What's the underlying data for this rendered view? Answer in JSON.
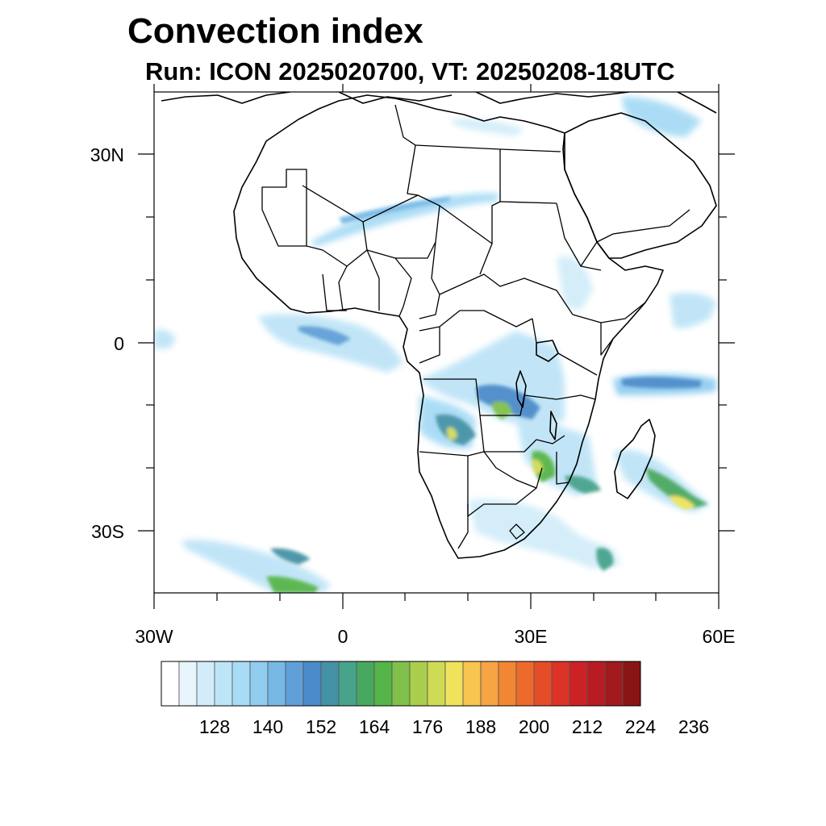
{
  "title": "Convection index",
  "subtitle": "Run: ICON 2025020700,  VT: 20250208-18UTC",
  "map": {
    "region": "Africa",
    "lon_range": [
      -30,
      60
    ],
    "lat_range": [
      -40,
      40
    ],
    "lat_labels": [
      "30N",
      "0",
      "30S"
    ],
    "lon_labels": [
      "30W",
      "0",
      "30E",
      "60E"
    ]
  },
  "colorbar": {
    "labels": [
      "128",
      "140",
      "152",
      "164",
      "176",
      "188",
      "200",
      "212",
      "224",
      "236"
    ],
    "colors": [
      "#ffffff",
      "#e8f5fc",
      "#d2edf9",
      "#bee4f7",
      "#a8dbf5",
      "#90cdef",
      "#77b8e5",
      "#609fd8",
      "#4b8bc9",
      "#4592a6",
      "#47a38c",
      "#49a860",
      "#56b548",
      "#80c04a",
      "#a9ce4e",
      "#d0db55",
      "#efe35b",
      "#f7c550",
      "#f7a444",
      "#f38634",
      "#ee6a2c",
      "#e44d28",
      "#dc3327",
      "#cc2226",
      "#b81b24",
      "#a01a1e",
      "#8a1515"
    ]
  }
}
